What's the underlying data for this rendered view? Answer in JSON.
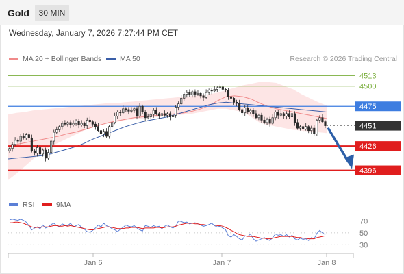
{
  "header": {
    "instrument": "Gold",
    "timeframe": "30 MIN"
  },
  "datetime": "Wednesday, January 7, 2026 7:27:44 PM CET",
  "credit": "Research © 2026 Trading Central",
  "legend": {
    "bollinger": {
      "label": "MA 20 + Bollinger Bands",
      "color": "#f08a8a"
    },
    "ma50": {
      "label": "MA 50",
      "color": "#3a5ea8"
    }
  },
  "rsi_legend": {
    "rsi": {
      "label": "RSI",
      "color": "#5b7fd6"
    },
    "ma9": {
      "label": "9MA",
      "color": "#e01e1e"
    }
  },
  "colors": {
    "up": "#2a2a2a",
    "down": "#2a2a2a",
    "resistance": "#3d7de0",
    "support": "#e01e1e",
    "target": "#7aae3c",
    "arrow": "#2d5fa8"
  },
  "chart_data": {
    "type": "candlestick",
    "x_ticks": [
      "Jan 6",
      "Jan 7",
      "Jan 8"
    ],
    "ylim": [
      4366,
      4526
    ],
    "levels": [
      {
        "value": 4513,
        "label": "4513",
        "kind": "target"
      },
      {
        "value": 4500,
        "label": "4500",
        "kind": "target"
      },
      {
        "value": 4475,
        "label": "4475",
        "kind": "resistance"
      },
      {
        "value": 4451,
        "label": "4451",
        "kind": "current"
      },
      {
        "value": 4426,
        "label": "4426",
        "kind": "support"
      },
      {
        "value": 4396,
        "label": "4396",
        "kind": "support"
      }
    ],
    "close": [
      4423,
      4428,
      4433,
      4432,
      4438,
      4436,
      4440,
      4436,
      4420,
      4417,
      4424,
      4416,
      4421,
      4411,
      4418,
      4432,
      4443,
      4446,
      4450,
      4454,
      4453,
      4455,
      4452,
      4454,
      4457,
      4452,
      4454,
      4451,
      4458,
      4456,
      4453,
      4450,
      4445,
      4441,
      4444,
      4438,
      4450,
      4455,
      4463,
      4468,
      4467,
      4472,
      4471,
      4469,
      4470,
      4472,
      4463,
      4475,
      4468,
      4461,
      4462,
      4465,
      4470,
      4466,
      4463,
      4466,
      4464,
      4466,
      4462,
      4464,
      4474,
      4478,
      4485,
      4490,
      4492,
      4489,
      4493,
      4490,
      4491,
      4488,
      4486,
      4492,
      4495,
      4494,
      4496,
      4498,
      4499,
      4496,
      4495,
      4487,
      4485,
      4480,
      4479,
      4471,
      4467,
      4473,
      4468,
      4470,
      4466,
      4461,
      4464,
      4458,
      4455,
      4459,
      4454,
      4461,
      4468,
      4464,
      4466,
      4463,
      4466,
      4462,
      4466,
      4455,
      4448,
      4450,
      4447,
      4450,
      4445,
      4448,
      4441,
      4458,
      4461,
      4456,
      4451
    ],
    "upper_band": [
      4465,
      4467,
      4468,
      4470,
      4471,
      4472,
      4473,
      4474,
      4475,
      4476,
      4477,
      4478,
      4479,
      4479,
      4480,
      4481,
      4482,
      4483,
      4484,
      4485,
      4486,
      4487,
      4488,
      4489,
      4490,
      4492,
      4495,
      4498,
      4501,
      4503,
      4505,
      4505,
      4504,
      4500,
      4496,
      4490,
      4485,
      4480,
      4476
    ],
    "lower_band": [
      4384,
      4392,
      4401,
      4410,
      4418,
      4425,
      4430,
      4435,
      4440,
      4445,
      4449,
      4452,
      4454,
      4456,
      4458,
      4459,
      4460,
      4461,
      4462,
      4463,
      4464,
      4465,
      4466,
      4468,
      4470,
      4472,
      4472,
      4470,
      4468,
      4462,
      4455,
      4452,
      4450,
      4448,
      4446,
      4445,
      4444,
      4443,
      4442
    ],
    "ma20": [
      4425,
      4428,
      4430,
      4432,
      4434,
      4436,
      4438,
      4441,
      4443,
      4446,
      4449,
      4452,
      4455,
      4457,
      4459,
      4461,
      4462,
      4463,
      4464,
      4465,
      4466,
      4467,
      4469,
      4472,
      4476,
      4482,
      4487,
      4488,
      4487,
      4484,
      4479,
      4475,
      4472,
      4470,
      4468,
      4466,
      4464,
      4462,
      4460
    ],
    "ma50": [
      4410,
      4411,
      4412,
      4413,
      4414,
      4416,
      4419,
      4422,
      4425,
      4429,
      4434,
      4438,
      4442,
      4446,
      4450,
      4453,
      4456,
      4458,
      4460,
      4462,
      4465,
      4468,
      4471,
      4474,
      4477,
      4479,
      4480,
      4479,
      4478,
      4477,
      4476,
      4475,
      4474,
      4473,
      4472,
      4471,
      4470,
      4469,
      4468
    ],
    "rsi": [
      72,
      73,
      72,
      71,
      73,
      71,
      68,
      62,
      55,
      58,
      60,
      57,
      63,
      58,
      60,
      64,
      66,
      62,
      60,
      65,
      63,
      62,
      66,
      60,
      62,
      64,
      59,
      56,
      52,
      51,
      54,
      58,
      63,
      60,
      66,
      62,
      60,
      57,
      55,
      52,
      56,
      59,
      63,
      61,
      60,
      62,
      58,
      55,
      53,
      62,
      61,
      59,
      62,
      60,
      61,
      57,
      61,
      63,
      60,
      58,
      61,
      70,
      69,
      67,
      68,
      65,
      66,
      67,
      65,
      63,
      61,
      62,
      64,
      66,
      62,
      60,
      61,
      58,
      55,
      45,
      43,
      47,
      44,
      40,
      38,
      45,
      44,
      48,
      40,
      36,
      38,
      40,
      42,
      39,
      37,
      42,
      48,
      46,
      47,
      44,
      47,
      43,
      46,
      40,
      38,
      41,
      39,
      40,
      37,
      42,
      40,
      49,
      54,
      50,
      47
    ],
    "rsi_ma": [
      67,
      67,
      68,
      68,
      67,
      66,
      64,
      62,
      60,
      59,
      59,
      59,
      60,
      60,
      60,
      61,
      62,
      62,
      61,
      61,
      62,
      61,
      62,
      61,
      60,
      59,
      58,
      57,
      56,
      55,
      55,
      56,
      57,
      58,
      59,
      60,
      60,
      59,
      58,
      57,
      57,
      57,
      58,
      58,
      59,
      59,
      59,
      58,
      57,
      58,
      58,
      58,
      58,
      59,
      59,
      58,
      59,
      60,
      60,
      60,
      61,
      63,
      64,
      65,
      66,
      66,
      66,
      65,
      65,
      64,
      64,
      63,
      63,
      63,
      63,
      62,
      62,
      61,
      59,
      57,
      54,
      52,
      49,
      47,
      46,
      45,
      44,
      44,
      44,
      43,
      42,
      41,
      41,
      40,
      40,
      41,
      42,
      43,
      44,
      44,
      44,
      44,
      44,
      43,
      42,
      42,
      41,
      41,
      40,
      40,
      40,
      42,
      43,
      44,
      45
    ],
    "rsi_ticks": [
      70,
      50,
      30
    ],
    "rsi_ylim": [
      20,
      82
    ]
  }
}
